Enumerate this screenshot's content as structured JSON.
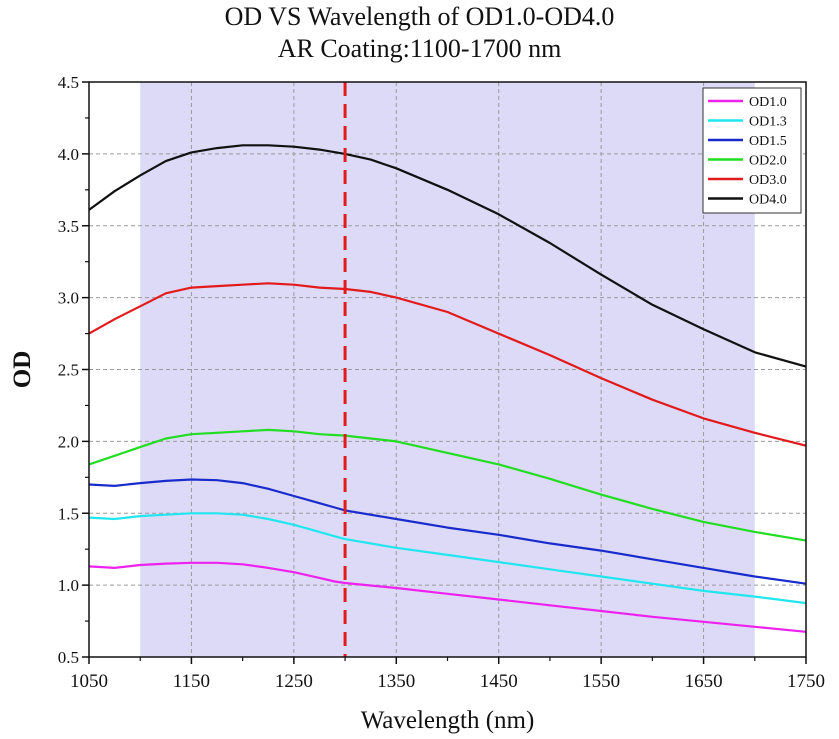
{
  "chart_data": {
    "type": "line",
    "title": "OD VS Wavelength of OD1.0-OD4.0",
    "subtitle": "AR Coating:1100-1700 nm",
    "xlabel": "Wavelength (nm)",
    "ylabel": "OD",
    "xlim": [
      1050,
      1750
    ],
    "ylim": [
      0.5,
      4.5
    ],
    "xticks": [
      "1050",
      "1150",
      "1250",
      "1350",
      "1450",
      "1550",
      "1650",
      "1750"
    ],
    "yticks": [
      "0.5",
      "1.0",
      "1.5",
      "2.0",
      "2.5",
      "3.0",
      "3.5",
      "4.0",
      "4.5"
    ],
    "grid": "on (dashed)",
    "legend_position": "top-right",
    "shaded_region": [
      1100,
      1700
    ],
    "shaded_color": "#dcdaf7",
    "reference_line": {
      "x": 1300,
      "color": "#e31a1c"
    },
    "series": [
      {
        "name": "OD1.0",
        "color": "#ee22ee",
        "x": [
          1050,
          1075,
          1100,
          1125,
          1150,
          1175,
          1200,
          1225,
          1250,
          1275,
          1290,
          1300,
          1350,
          1400,
          1450,
          1500,
          1550,
          1600,
          1650,
          1700,
          1750
        ],
        "y": [
          1.13,
          1.12,
          1.14,
          1.15,
          1.155,
          1.155,
          1.145,
          1.12,
          1.09,
          1.05,
          1.025,
          1.015,
          0.98,
          0.94,
          0.9,
          0.86,
          0.82,
          0.78,
          0.745,
          0.71,
          0.675
        ]
      },
      {
        "name": "OD1.3",
        "color": "#22e6ee",
        "x": [
          1050,
          1075,
          1100,
          1125,
          1150,
          1175,
          1200,
          1225,
          1250,
          1275,
          1290,
          1300,
          1350,
          1400,
          1450,
          1500,
          1550,
          1600,
          1650,
          1700,
          1750
        ],
        "y": [
          1.47,
          1.46,
          1.48,
          1.49,
          1.5,
          1.5,
          1.49,
          1.46,
          1.42,
          1.37,
          1.34,
          1.32,
          1.26,
          1.21,
          1.16,
          1.11,
          1.06,
          1.01,
          0.96,
          0.92,
          0.875
        ]
      },
      {
        "name": "OD1.5",
        "color": "#1a2bcc",
        "x": [
          1050,
          1075,
          1100,
          1125,
          1150,
          1175,
          1200,
          1225,
          1250,
          1275,
          1290,
          1300,
          1350,
          1400,
          1450,
          1500,
          1550,
          1600,
          1650,
          1700,
          1750
        ],
        "y": [
          1.7,
          1.69,
          1.71,
          1.725,
          1.735,
          1.73,
          1.71,
          1.67,
          1.62,
          1.57,
          1.54,
          1.52,
          1.46,
          1.4,
          1.35,
          1.29,
          1.24,
          1.18,
          1.12,
          1.06,
          1.01
        ]
      },
      {
        "name": "OD2.0",
        "color": "#22dd22",
        "x": [
          1050,
          1075,
          1100,
          1125,
          1150,
          1175,
          1200,
          1225,
          1250,
          1275,
          1300,
          1325,
          1350,
          1400,
          1450,
          1500,
          1550,
          1600,
          1650,
          1700,
          1750
        ],
        "y": [
          1.84,
          1.9,
          1.96,
          2.02,
          2.05,
          2.06,
          2.07,
          2.08,
          2.07,
          2.05,
          2.04,
          2.02,
          2.0,
          1.92,
          1.84,
          1.74,
          1.63,
          1.53,
          1.44,
          1.37,
          1.31
        ]
      },
      {
        "name": "OD3.0",
        "color": "#e31a1c",
        "x": [
          1050,
          1075,
          1100,
          1125,
          1150,
          1175,
          1200,
          1225,
          1250,
          1275,
          1300,
          1325,
          1350,
          1400,
          1450,
          1500,
          1550,
          1600,
          1650,
          1700,
          1750
        ],
        "y": [
          2.75,
          2.85,
          2.94,
          3.03,
          3.07,
          3.08,
          3.09,
          3.1,
          3.09,
          3.07,
          3.06,
          3.04,
          3.0,
          2.9,
          2.75,
          2.6,
          2.44,
          2.29,
          2.16,
          2.06,
          1.97
        ]
      },
      {
        "name": "OD4.0",
        "color": "#111111",
        "x": [
          1050,
          1075,
          1100,
          1125,
          1150,
          1175,
          1200,
          1225,
          1250,
          1275,
          1300,
          1325,
          1350,
          1400,
          1450,
          1500,
          1550,
          1600,
          1650,
          1700,
          1750
        ],
        "y": [
          3.61,
          3.74,
          3.85,
          3.95,
          4.01,
          4.04,
          4.06,
          4.06,
          4.05,
          4.03,
          4.0,
          3.96,
          3.9,
          3.75,
          3.58,
          3.38,
          3.16,
          2.95,
          2.78,
          2.62,
          2.52
        ]
      }
    ]
  }
}
